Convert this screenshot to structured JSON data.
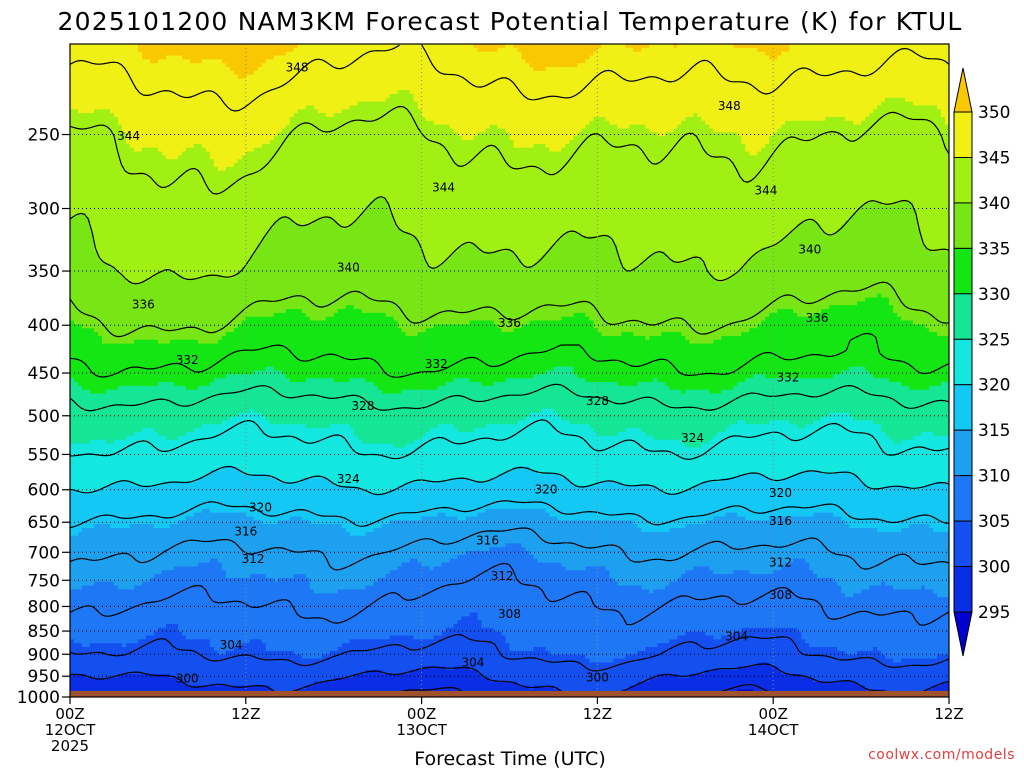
{
  "chart_data": {
    "type": "heatmap",
    "title": "2025101200 NAM3KM Forecast Potential Temperature (K) for KTUL",
    "xlabel": "Forecast Time (UTC)",
    "ylabel": "",
    "x_range_hours": [
      0,
      60
    ],
    "y_axis": "pressure (hPa), log scale",
    "ylim": [
      1000,
      200
    ],
    "y_ticks": [
      250,
      300,
      350,
      400,
      450,
      500,
      550,
      600,
      650,
      700,
      750,
      800,
      850,
      900,
      950,
      1000
    ],
    "x_ticks": [
      {
        "hour": 0,
        "line1": "00Z",
        "line2": "12OCT",
        "line3": "2025"
      },
      {
        "hour": 12,
        "line1": "12Z",
        "line2": "",
        "line3": ""
      },
      {
        "hour": 24,
        "line1": "00Z",
        "line2": "13OCT",
        "line3": ""
      },
      {
        "hour": 36,
        "line1": "12Z",
        "line2": "",
        "line3": ""
      },
      {
        "hour": 48,
        "line1": "00Z",
        "line2": "14OCT",
        "line3": ""
      },
      {
        "hour": 60,
        "line1": "12Z",
        "line2": "",
        "line3": ""
      }
    ],
    "colorbar": {
      "levels": [
        295,
        300,
        305,
        310,
        315,
        320,
        325,
        330,
        335,
        340,
        345,
        350
      ],
      "colors": [
        "#0000d0",
        "#0a2ee6",
        "#1450f0",
        "#1e78f5",
        "#1ea0f0",
        "#14c8f5",
        "#14e6e0",
        "#14e696",
        "#14e614",
        "#78e614",
        "#a0f014",
        "#f0f014",
        "#fac800"
      ]
    },
    "contour_interval_K": 4,
    "contour_levels": [
      296,
      300,
      304,
      308,
      312,
      316,
      320,
      324,
      328,
      332,
      336,
      340,
      344,
      348
    ],
    "contour_labels": [
      {
        "value": 348,
        "hour": 15.5,
        "pressure": 212
      },
      {
        "value": 348,
        "hour": 45,
        "pressure": 233
      },
      {
        "value": 344,
        "hour": 4,
        "pressure": 251
      },
      {
        "value": 344,
        "hour": 25.5,
        "pressure": 285
      },
      {
        "value": 344,
        "hour": 47.5,
        "pressure": 287
      },
      {
        "value": 340,
        "hour": 19,
        "pressure": 347
      },
      {
        "value": 340,
        "hour": 50.5,
        "pressure": 332
      },
      {
        "value": 336,
        "hour": 5,
        "pressure": 380
      },
      {
        "value": 336,
        "hour": 30,
        "pressure": 398
      },
      {
        "value": 336,
        "hour": 51,
        "pressure": 393
      },
      {
        "value": 332,
        "hour": 8,
        "pressure": 436
      },
      {
        "value": 332,
        "hour": 25,
        "pressure": 440
      },
      {
        "value": 332,
        "hour": 49,
        "pressure": 455
      },
      {
        "value": 328,
        "hour": 20,
        "pressure": 488
      },
      {
        "value": 328,
        "hour": 36,
        "pressure": 482
      },
      {
        "value": 324,
        "hour": 19,
        "pressure": 584
      },
      {
        "value": 324,
        "hour": 42.5,
        "pressure": 528
      },
      {
        "value": 320,
        "hour": 13,
        "pressure": 627
      },
      {
        "value": 320,
        "hour": 32.5,
        "pressure": 600
      },
      {
        "value": 320,
        "hour": 48.5,
        "pressure": 605
      },
      {
        "value": 316,
        "hour": 12,
        "pressure": 665
      },
      {
        "value": 316,
        "hour": 28.5,
        "pressure": 680
      },
      {
        "value": 316,
        "hour": 48.5,
        "pressure": 648
      },
      {
        "value": 312,
        "hour": 12.5,
        "pressure": 712
      },
      {
        "value": 312,
        "hour": 29.5,
        "pressure": 742
      },
      {
        "value": 312,
        "hour": 48.5,
        "pressure": 718
      },
      {
        "value": 308,
        "hour": 30,
        "pressure": 815
      },
      {
        "value": 308,
        "hour": 48.5,
        "pressure": 778
      },
      {
        "value": 304,
        "hour": 11,
        "pressure": 880
      },
      {
        "value": 304,
        "hour": 27.5,
        "pressure": 918
      },
      {
        "value": 304,
        "hour": 45.5,
        "pressure": 861
      },
      {
        "value": 300,
        "hour": 8,
        "pressure": 955
      },
      {
        "value": 300,
        "hour": 36,
        "pressure": 953
      }
    ],
    "ground": {
      "label": "surface",
      "pressure_top": 985,
      "color": "#a0522d"
    }
  },
  "watermark": "coolwx.com/models"
}
